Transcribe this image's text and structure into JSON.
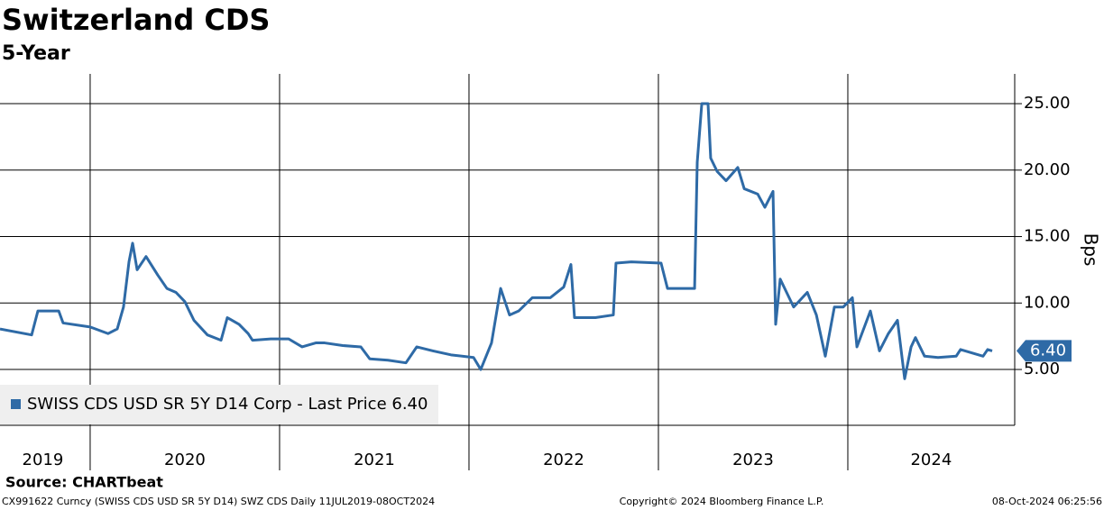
{
  "chart_data": {
    "type": "line",
    "title": "Switzerland CDS",
    "subtitle": "5-Year",
    "y_label": "Bps",
    "legend_label": "SWISS CDS USD SR 5Y D14 Corp - Last Price 6.40",
    "source": "Source: CHARTbeat",
    "footer_left": "CX991622 Curncy (SWISS CDS USD SR 5Y D14) SWZ CDS  Daily 11JUL2019-08OCT2024",
    "footer_center": "Copyright© 2024 Bloomberg Finance L.P.",
    "footer_right": "08-Oct-2024 06:25:56",
    "last_price": {
      "value": 6.4,
      "label": "6.40"
    },
    "xlim": [
      2019.524,
      2024.881
    ],
    "ylim": [
      0.8,
      27.24
    ],
    "yticks": [
      {
        "value": 5,
        "label": "5.00"
      },
      {
        "value": 10,
        "label": "10.00"
      },
      {
        "value": 15,
        "label": "15.00"
      },
      {
        "value": 20,
        "label": "20.00"
      },
      {
        "value": 25,
        "label": "25.00"
      }
    ],
    "year_boundaries": [
      2020,
      2021,
      2022,
      2023,
      2024
    ],
    "xticks": [
      {
        "value": 2019.75,
        "label": "2019"
      },
      {
        "value": 2020.5,
        "label": "2020"
      },
      {
        "value": 2021.5,
        "label": "2021"
      },
      {
        "value": 2022.5,
        "label": "2022"
      },
      {
        "value": 2023.5,
        "label": "2023"
      },
      {
        "value": 2024.44,
        "label": "2024"
      }
    ],
    "grid": true,
    "series": [
      {
        "name": "SWISS CDS USD SR 5Y D14 Corp",
        "color": "#2e6aa6",
        "x": [
          2019.524,
          2019.691,
          2019.724,
          2019.834,
          2019.857,
          2020.0,
          2020.095,
          2020.143,
          2020.176,
          2020.205,
          2020.224,
          2020.248,
          2020.295,
          2020.357,
          2020.405,
          2020.453,
          2020.5,
          2020.548,
          2020.619,
          2020.691,
          2020.724,
          2020.786,
          2020.834,
          2020.857,
          2020.953,
          2021.048,
          2021.119,
          2021.191,
          2021.238,
          2021.334,
          2021.429,
          2021.476,
          2021.572,
          2021.667,
          2021.724,
          2021.81,
          2021.905,
          2022.024,
          2022.062,
          2022.119,
          2022.167,
          2022.214,
          2022.262,
          2022.334,
          2022.429,
          2022.5,
          2022.538,
          2022.557,
          2022.667,
          2022.762,
          2022.776,
          2022.857,
          2023.014,
          2023.048,
          2023.191,
          2023.205,
          2023.229,
          2023.262,
          2023.276,
          2023.31,
          2023.357,
          2023.419,
          2023.453,
          2023.524,
          2023.562,
          2023.605,
          2023.619,
          2023.643,
          2023.714,
          2023.786,
          2023.834,
          2023.881,
          2023.929,
          2023.976,
          2024.024,
          2024.048,
          2024.119,
          2024.167,
          2024.214,
          2024.262,
          2024.3,
          2024.334,
          2024.357,
          2024.405,
          2024.476,
          2024.572,
          2024.595,
          2024.714,
          2024.738,
          2024.762
        ],
        "values": [
          8.05,
          7.6,
          9.4,
          9.4,
          8.5,
          8.2,
          7.7,
          8.05,
          9.7,
          13.1,
          14.5,
          12.5,
          13.5,
          12.1,
          11.1,
          10.8,
          10.1,
          8.7,
          7.6,
          7.2,
          8.9,
          8.4,
          7.7,
          7.2,
          7.3,
          7.3,
          6.7,
          7.0,
          7.0,
          6.8,
          6.7,
          5.8,
          5.7,
          5.5,
          6.7,
          6.4,
          6.1,
          5.9,
          5.0,
          7.0,
          11.1,
          9.1,
          9.4,
          10.4,
          10.4,
          11.2,
          12.9,
          8.9,
          8.9,
          9.1,
          13.0,
          13.1,
          13.0,
          11.1,
          11.1,
          20.6,
          25,
          25,
          20.9,
          19.9,
          19.2,
          20.2,
          18.6,
          18.2,
          17.2,
          18.4,
          8.4,
          11.8,
          9.7,
          10.8,
          9.1,
          6.0,
          9.7,
          9.7,
          10.4,
          6.7,
          9.4,
          6.4,
          7.7,
          8.7,
          4.3,
          6.7,
          7.4,
          6.0,
          5.9,
          6.0,
          6.5,
          6.0,
          6.5,
          6.4
        ]
      }
    ]
  }
}
